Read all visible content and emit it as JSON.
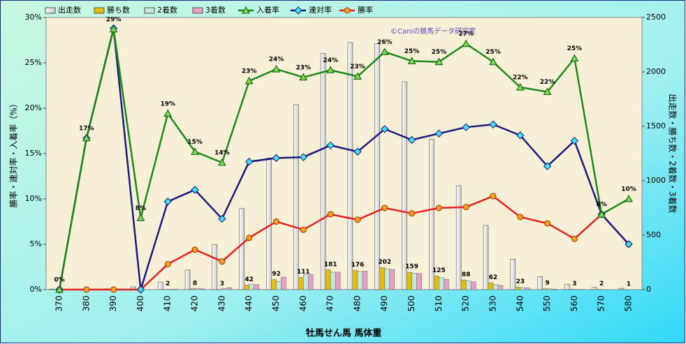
{
  "chart_data": {
    "type": "combo",
    "xlabel": "牡馬せん馬 馬体重",
    "ylabel": "勝率・連対率・入着率（%）",
    "y2label": "出走数・勝ち数・2着数・3着数",
    "annotation": "©Caniの競馬データ研究室",
    "categories": [
      "370",
      "380",
      "390",
      "400",
      "410",
      "420",
      "430",
      "440",
      "450",
      "460",
      "470",
      "480",
      "490",
      "500",
      "510",
      "520",
      "530",
      "540",
      "550",
      "560",
      "570",
      "580"
    ],
    "ylim": [
      0,
      30
    ],
    "yticks": [
      {
        "value": 0,
        "label": "0%"
      },
      {
        "value": 5,
        "label": "5%"
      },
      {
        "value": 10,
        "label": "10%"
      },
      {
        "value": 15,
        "label": "15%"
      },
      {
        "value": 20,
        "label": "20%"
      },
      {
        "value": 25,
        "label": "25%"
      },
      {
        "value": 30,
        "label": "30%"
      }
    ],
    "y2lim": [
      0,
      2500
    ],
    "y2ticks": [
      0,
      500,
      1000,
      1500,
      2000,
      2500
    ],
    "series": [
      {
        "name": "出走数",
        "kind": "bar",
        "axis": "y2",
        "color": "#ffffff",
        "values": [
          5,
          5,
          7,
          25,
          70,
          180,
          415,
          745,
          1210,
          1700,
          2170,
          2270,
          2260,
          1910,
          1380,
          955,
          590,
          280,
          120,
          50,
          20,
          12
        ]
      },
      {
        "name": "勝ち数",
        "kind": "bar",
        "axis": "y2",
        "color": "#e6be00",
        "values": [
          0,
          0,
          1,
          0,
          2,
          8,
          3,
          42,
          92,
          111,
          181,
          176,
          202,
          159,
          125,
          88,
          62,
          23,
          9,
          3,
          2,
          1
        ],
        "value_labels": [
          null,
          null,
          null,
          null,
          "2",
          "8",
          "3",
          "42",
          "92",
          "111",
          "181",
          "176",
          "202",
          "159",
          "125",
          "88",
          "62",
          "23",
          "9",
          "3",
          "2",
          "1"
        ]
      },
      {
        "name": "2着数",
        "kind": "bar",
        "axis": "y2",
        "color": "#c6e8dc",
        "values": [
          0,
          1,
          1,
          0,
          3,
          12,
          10,
          48,
          75,
          135,
          160,
          165,
          190,
          150,
          110,
          80,
          45,
          18,
          7,
          2,
          1,
          0
        ]
      },
      {
        "name": "3着数",
        "kind": "bar",
        "axis": "y2",
        "color": "#e6a0c8",
        "values": [
          0,
          0,
          0,
          0,
          4,
          7,
          18,
          45,
          115,
          140,
          160,
          170,
          185,
          148,
          95,
          72,
          38,
          15,
          4,
          2,
          0,
          1
        ]
      },
      {
        "name": "入着率",
        "kind": "line",
        "color": "#1a8a1a",
        "marker": "triangle",
        "marker_color": "#7cd850",
        "values": [
          0,
          16.7,
          28.7,
          7.9,
          19.4,
          15.2,
          14,
          23,
          24.3,
          23.4,
          24.2,
          23.5,
          26.2,
          25.2,
          25.1,
          27.1,
          25.1,
          22.3,
          21.8,
          25.5,
          8.3,
          10
        ],
        "value_labels": [
          "0%",
          "17%",
          "29%",
          "8%",
          "19%",
          "15%",
          "14%",
          "23%",
          "24%",
          "23%",
          "24%",
          "23%",
          "26%",
          "25%",
          "25%",
          "27%",
          "25%",
          "22%",
          "22%",
          "25%",
          "8%",
          "10%"
        ]
      },
      {
        "name": "連対率",
        "kind": "line",
        "color": "#1a1a80",
        "marker": "diamond",
        "marker_color": "#40e0f0",
        "values": [
          0,
          16.7,
          28.8,
          0,
          9.7,
          11,
          7.8,
          14.1,
          14.5,
          14.6,
          15.9,
          15.2,
          17.7,
          16.5,
          17.2,
          17.9,
          18.2,
          17,
          13.6,
          16.4,
          8.3,
          5
        ]
      },
      {
        "name": "勝率",
        "kind": "line",
        "color": "#e82020",
        "marker": "circle",
        "marker_color": "#f8a020",
        "values": [
          0,
          0,
          0,
          0,
          2.8,
          4.4,
          3.1,
          5.7,
          7.5,
          6.6,
          8.3,
          7.7,
          9,
          8.4,
          9,
          9.1,
          10.3,
          8,
          7.3,
          5.6,
          8.3,
          5
        ]
      }
    ]
  }
}
